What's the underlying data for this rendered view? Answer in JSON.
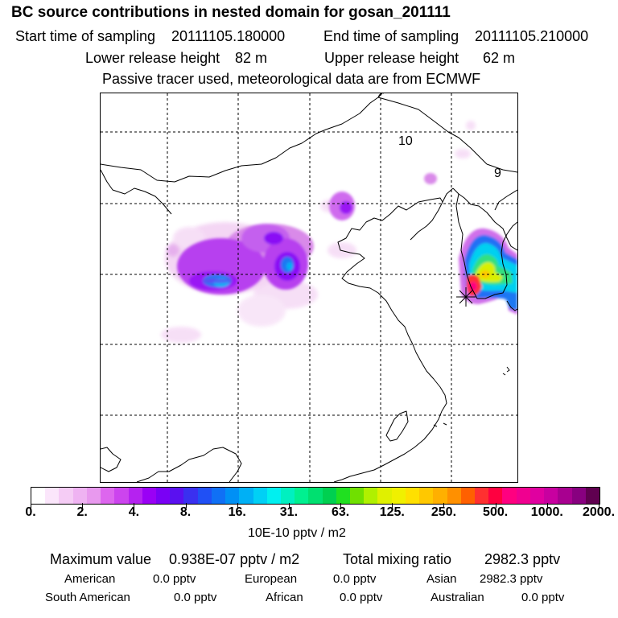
{
  "header": {
    "title": "BC  source contributions in nested domain for gosan_201111",
    "start_label": "Start time of sampling",
    "start_value": "20111105.180000",
    "end_label": "End time of sampling",
    "end_value": "20111105.210000",
    "lower_label": "Lower release height",
    "lower_value": "82 m",
    "upper_label": "Upper release height",
    "upper_value": "62 m",
    "tracer_note": "Passive tracer used, meteorological data are from ECMWF"
  },
  "map": {
    "contour_labels": [
      "10",
      "9"
    ],
    "receptor_marker": "gosan-receptor"
  },
  "colorbar": {
    "labels": [
      "0.",
      "2.",
      "4.",
      "8.",
      "16.",
      "31.",
      "63.",
      "125.",
      "250.",
      "500.",
      "1000.",
      "2000."
    ],
    "unit": "10E-10 pptv / m2",
    "colors": [
      "#ffffff",
      "#fbe6fb",
      "#f5ccf5",
      "#efb3f2",
      "#e899ee",
      "#dd66ee",
      "#cc44ee",
      "#b522f0",
      "#9a00f5",
      "#7a00f5",
      "#5a10f0",
      "#3a30f0",
      "#2050f5",
      "#1070f5",
      "#0090f5",
      "#00b0f5",
      "#00d0f5",
      "#00f0f0",
      "#00f0c0",
      "#00f090",
      "#00e070",
      "#00d050",
      "#20e020",
      "#70e000",
      "#b0f000",
      "#e0f000",
      "#f0f000",
      "#ffe000",
      "#ffc800",
      "#ffb000",
      "#ff9000",
      "#ff6000",
      "#ff3030",
      "#ff0040",
      "#ff0080",
      "#f00090",
      "#e000a0",
      "#c800a0",
      "#a80090",
      "#880080",
      "#600050"
    ]
  },
  "summary": {
    "max_label": "Maximum value",
    "max_value": "0.938E-07 pptv / m2",
    "total_label": "Total mixing ratio",
    "total_value": "2982.3 pptv",
    "american_label": "American",
    "american_value": "0.0 pptv",
    "european_label": "European",
    "european_value": "0.0 pptv",
    "asian_label": "Asian",
    "asian_value": "2982.3 pptv",
    "south_american_label": "South American",
    "south_american_value": "0.0 pptv",
    "african_label": "African",
    "african_value": "0.0 pptv",
    "australian_label": "Australian",
    "australian_value": "0.0 pptv"
  }
}
